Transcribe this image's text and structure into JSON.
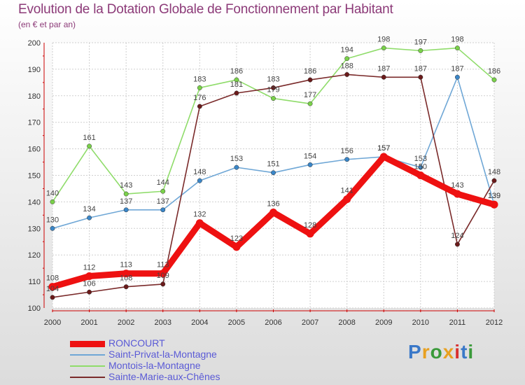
{
  "chart_data": {
    "type": "line",
    "title": "Evolution de la Dotation Globale de Fonctionnement par Habitant",
    "subtitle": "(en € et par an)",
    "categories": [
      "2000",
      "2001",
      "2002",
      "2003",
      "2004",
      "2005",
      "2006",
      "2007",
      "2008",
      "2009",
      "2010",
      "2011",
      "2012"
    ],
    "ylim": [
      100,
      200
    ],
    "yticks": [
      100,
      110,
      120,
      130,
      140,
      150,
      160,
      170,
      180,
      190,
      200
    ],
    "grid": true,
    "series": [
      {
        "name": "Saint-Privat-la-Montagne",
        "color": "#6fa7d6",
        "marker": "#3a86c8",
        "values": [
          130,
          134,
          137,
          137,
          148,
          153,
          151,
          154,
          156,
          157,
          153,
          187,
          139
        ],
        "labels": [
          "130",
          "134",
          "137",
          "137",
          "148",
          "153",
          "151",
          "154",
          "156",
          "157",
          "153",
          "187",
          "139"
        ]
      },
      {
        "name": "Montois-la-Montagne",
        "color": "#8fdc6a",
        "marker": "#7ad14a",
        "values": [
          140,
          161,
          143,
          144,
          183,
          186,
          179,
          177,
          194,
          198,
          197,
          198,
          186
        ],
        "labels": [
          "140",
          "161",
          "143",
          "144",
          "183",
          "186",
          "179",
          "177",
          "194",
          "198",
          "197",
          "198",
          "186"
        ]
      },
      {
        "name": "Sainte-Marie-aux-Chênes",
        "color": "#7a2a2a",
        "marker": "#6a1a1a",
        "values": [
          104,
          106,
          108,
          109,
          176,
          181,
          183,
          186,
          188,
          187,
          187,
          124,
          148
        ],
        "labels": [
          "104",
          "106",
          "108",
          "109",
          "176",
          "181",
          "183",
          "186",
          "188",
          "187",
          "187",
          "124",
          "148"
        ]
      },
      {
        "name": "RONCOURT",
        "color": "#ee1111",
        "marker": "#ee1111",
        "values": [
          108,
          112,
          113,
          113,
          132,
          123,
          136,
          128,
          141,
          157,
          150,
          143,
          139
        ],
        "labels": [
          "108",
          "112",
          "113",
          "113",
          "132",
          "123",
          "136",
          "128",
          "141",
          "157",
          "150",
          "143",
          "139"
        ]
      }
    ],
    "legend_order": [
      "RONCOURT",
      "Saint-Privat-la-Montagne",
      "Montois-la-Montagne",
      "Sainte-Marie-aux-Chênes"
    ],
    "legend_position": "bottom-left"
  },
  "logo": {
    "letters": [
      "P",
      "r",
      "o",
      "x",
      "i",
      "t",
      "i"
    ],
    "colors": [
      "#3a78c8",
      "#e8a020",
      "#3a9a3a",
      "#e8a020",
      "#d83030",
      "#3a78c8",
      "#3a9a3a"
    ]
  }
}
